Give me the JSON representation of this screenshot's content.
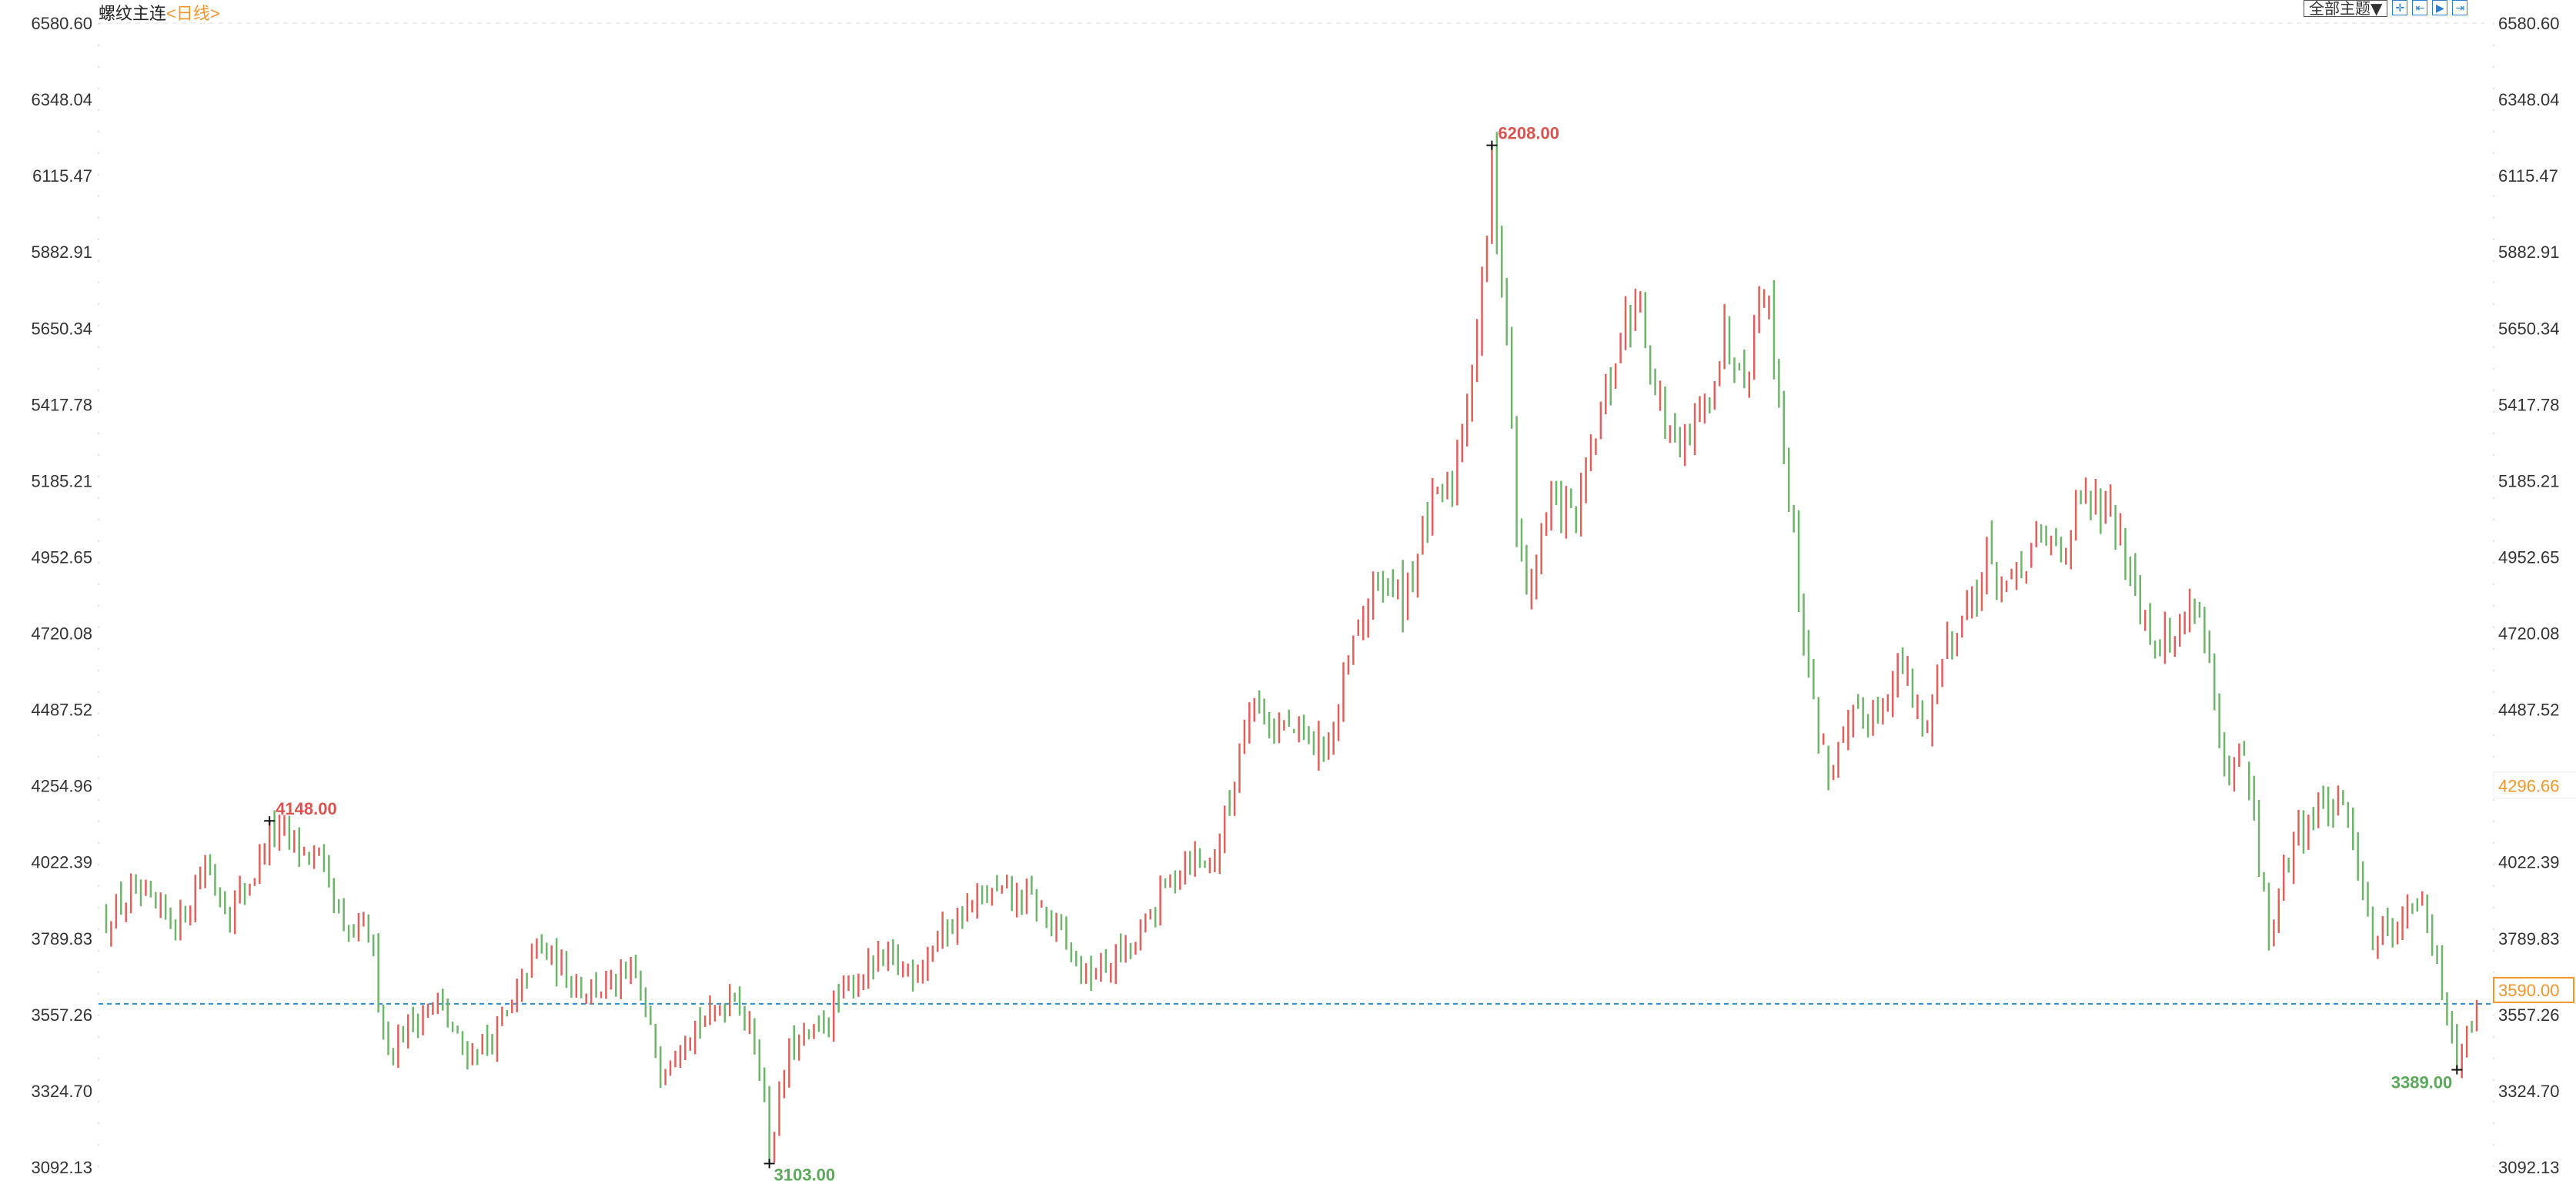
{
  "header": {
    "title": "螺纹主连",
    "period": "<日线>",
    "theme_button": "全部主题▼",
    "tool_icons": [
      "crosshair-icon",
      "zoom-range-icon",
      "play-icon",
      "jump-end-icon"
    ]
  },
  "colors": {
    "up": "#e0605c",
    "down": "#6db56a",
    "accent": "#f0962a",
    "current_line": "#2a8fd6",
    "high_label": "#d9534f",
    "low_label": "#5aa85a"
  },
  "chart_data": {
    "type": "ohlc",
    "title": "螺纹主连",
    "period": "日线",
    "ylim": [
      3092.13,
      6580.6
    ],
    "y_ticks": [
      "6580.60",
      "6348.04",
      "6115.47",
      "5882.91",
      "5650.34",
      "5417.78",
      "5185.21",
      "4952.65",
      "4720.08",
      "4487.52",
      "4254.96",
      "4022.39",
      "3789.83",
      "3557.26",
      "3324.70",
      "3092.13"
    ],
    "right_hover_label": {
      "replaces": "4254.96",
      "value": "4296.66"
    },
    "current_price": "3590.00",
    "bar_count": 480,
    "close_path": [
      [
        0,
        3844
      ],
      [
        5,
        3919
      ],
      [
        10,
        3869
      ],
      [
        15,
        3844
      ],
      [
        20,
        4019
      ],
      [
        25,
        3869
      ],
      [
        30,
        3994
      ],
      [
        33,
        4120
      ],
      [
        38,
        4080
      ],
      [
        43,
        4019
      ],
      [
        48,
        3794
      ],
      [
        53,
        3819
      ],
      [
        57,
        3443
      ],
      [
        62,
        3543
      ],
      [
        67,
        3593
      ],
      [
        72,
        3443
      ],
      [
        77,
        3468
      ],
      [
        82,
        3568
      ],
      [
        87,
        3769
      ],
      [
        92,
        3693
      ],
      [
        97,
        3643
      ],
      [
        102,
        3643
      ],
      [
        107,
        3668
      ],
      [
        112,
        3393
      ],
      [
        117,
        3518
      ],
      [
        122,
        3543
      ],
      [
        127,
        3643
      ],
      [
        132,
        3418
      ],
      [
        134,
        3150
      ],
      [
        138,
        3443
      ],
      [
        143,
        3493
      ],
      [
        148,
        3593
      ],
      [
        153,
        3693
      ],
      [
        158,
        3718
      ],
      [
        163,
        3693
      ],
      [
        168,
        3794
      ],
      [
        173,
        3869
      ],
      [
        178,
        3919
      ],
      [
        183,
        3919
      ],
      [
        188,
        3894
      ],
      [
        193,
        3794
      ],
      [
        198,
        3668
      ],
      [
        203,
        3718
      ],
      [
        208,
        3769
      ],
      [
        213,
        3919
      ],
      [
        218,
        4044
      ],
      [
        223,
        4019
      ],
      [
        227,
        4195
      ],
      [
        231,
        4545
      ],
      [
        235,
        4445
      ],
      [
        240,
        4420
      ],
      [
        245,
        4370
      ],
      [
        248,
        4420
      ],
      [
        252,
        4670
      ],
      [
        257,
        4896
      ],
      [
        262,
        4821
      ],
      [
        267,
        5072
      ],
      [
        272,
        5172
      ],
      [
        275,
        5448
      ],
      [
        278,
        5749
      ],
      [
        280,
        6150
      ],
      [
        283,
        5648
      ],
      [
        285,
        5047
      ],
      [
        287,
        4846
      ],
      [
        292,
        5122
      ],
      [
        297,
        5072
      ],
      [
        302,
        5373
      ],
      [
        307,
        5673
      ],
      [
        310,
        5749
      ],
      [
        313,
        5448
      ],
      [
        318,
        5247
      ],
      [
        322,
        5373
      ],
      [
        327,
        5623
      ],
      [
        332,
        5548
      ],
      [
        335,
        5824
      ],
      [
        338,
        5448
      ],
      [
        342,
        4846
      ],
      [
        345,
        4495
      ],
      [
        348,
        4295
      ],
      [
        353,
        4445
      ],
      [
        358,
        4495
      ],
      [
        363,
        4620
      ],
      [
        367,
        4420
      ],
      [
        372,
        4696
      ],
      [
        377,
        4821
      ],
      [
        380,
        4946
      ],
      [
        385,
        4846
      ],
      [
        390,
        4996
      ],
      [
        395,
        4996
      ],
      [
        400,
        5122
      ],
      [
        405,
        5072
      ],
      [
        410,
        4896
      ],
      [
        413,
        4721
      ],
      [
        418,
        4696
      ],
      [
        422,
        4846
      ],
      [
        425,
        4645
      ],
      [
        428,
        4245
      ],
      [
        432,
        4345
      ],
      [
        437,
        3794
      ],
      [
        442,
        4094
      ],
      [
        447,
        4195
      ],
      [
        452,
        4170
      ],
      [
        455,
        4044
      ],
      [
        458,
        3794
      ],
      [
        463,
        3844
      ],
      [
        467,
        3919
      ],
      [
        470,
        3769
      ],
      [
        475,
        3430
      ],
      [
        479,
        3590
      ]
    ],
    "annotations": [
      {
        "bar": 33,
        "type": "high",
        "value": "4148.00"
      },
      {
        "bar": 280,
        "type": "high",
        "value": "6208.00"
      },
      {
        "bar": 134,
        "type": "low",
        "value": "3103.00"
      },
      {
        "bar": 475,
        "type": "low",
        "value": "3389.00"
      }
    ]
  }
}
